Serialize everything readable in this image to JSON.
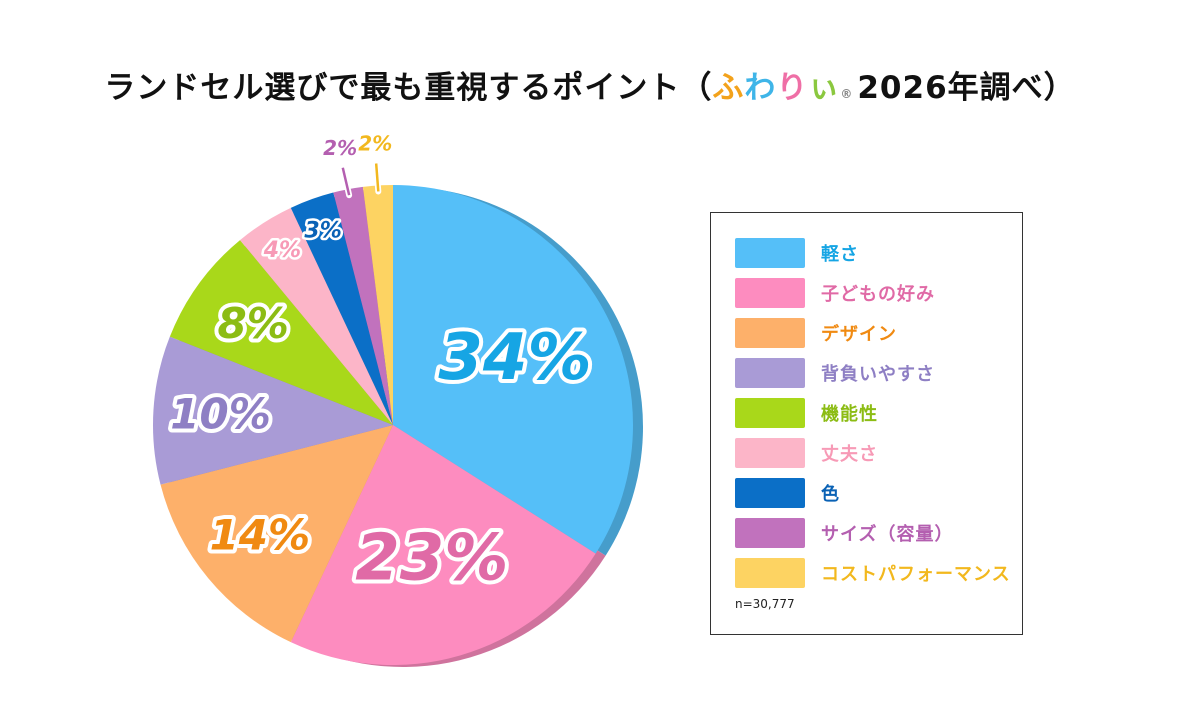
{
  "title": {
    "prefix": "ランドセル選びで最も重視するポイント（",
    "brand": "ふわりぃ",
    "brand_mark": "®",
    "suffix": "2026年調べ）",
    "brand_colors": [
      "#f3a21b",
      "#3fb5e8",
      "#ef6fa6",
      "#8bc83f"
    ]
  },
  "chart_data": {
    "type": "pie",
    "title": "ランドセル選びで最も重視するポイント（ふわりぃ® 2026年調べ）",
    "sample_size": "n=30,777",
    "legend_position": "right",
    "slices": [
      {
        "label": "軽さ",
        "value": 34,
        "display": "34%",
        "color": "#55bff8",
        "text_color": "#16a5e4"
      },
      {
        "label": "子どもの好み",
        "value": 23,
        "display": "23%",
        "color": "#fd8cbf",
        "text_color": "#e06aa6"
      },
      {
        "label": "デザイン",
        "value": 14,
        "display": "14%",
        "color": "#fdb06a",
        "text_color": "#f08a12"
      },
      {
        "label": "背負いやすさ",
        "value": 10,
        "display": "10%",
        "color": "#a99bd6",
        "text_color": "#8e7fc4"
      },
      {
        "label": "機能性",
        "value": 8,
        "display": "8%",
        "color": "#a9d81a",
        "text_color": "#8cbc14"
      },
      {
        "label": "丈夫さ",
        "value": 4,
        "display": "4%",
        "color": "#fcb5c8",
        "text_color": "#f79ab6"
      },
      {
        "label": "色",
        "value": 3,
        "display": "3%",
        "color": "#0b6fc7",
        "text_color": "#0a62b5"
      },
      {
        "label": "サイズ（容量）",
        "value": 2,
        "display": "2%",
        "color": "#c172bd",
        "text_color": "#b45fb0"
      },
      {
        "label": "コストパフォーマンス",
        "value": 2,
        "display": "2%",
        "color": "#fdd362",
        "text_color": "#f2b81e"
      }
    ]
  }
}
